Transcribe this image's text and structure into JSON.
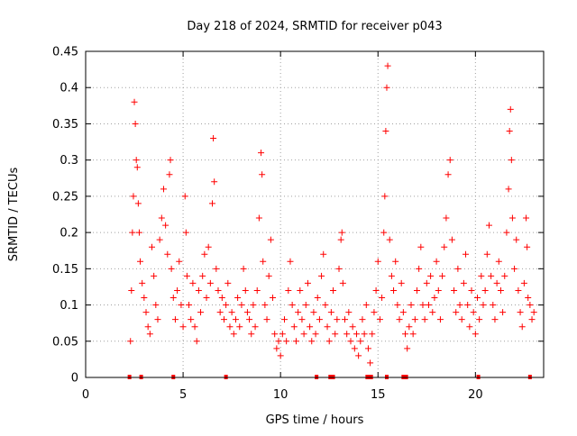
{
  "chart_data": {
    "type": "scatter",
    "title": "Day 218 of 2024, SRMTID for receiver p043",
    "xlabel": "GPS time / hours",
    "ylabel": "SRMTID / TECUs",
    "xlim": [
      0,
      23.5
    ],
    "ylim": [
      0,
      0.45
    ],
    "x_ticks": [
      0,
      5,
      10,
      15,
      20
    ],
    "y_ticks": [
      0,
      0.05,
      0.1,
      0.15,
      0.2,
      0.25,
      0.3,
      0.35,
      0.4,
      0.45
    ],
    "x_tick_labels": [
      "0",
      "5",
      "10",
      "15",
      "20"
    ],
    "y_tick_labels": [
      "0",
      "0.05",
      "0.1",
      "0.15",
      "0.2",
      "0.25",
      "0.3",
      "0.35",
      "0.4",
      "0.45"
    ],
    "grid": true,
    "marker": "+",
    "color": "#ff0000",
    "baseline_x": [
      2.25,
      2.85,
      4.5,
      7.2,
      11.85,
      12.55,
      12.7,
      14.45,
      14.55,
      14.65,
      15.45,
      16.3,
      16.45,
      20.15,
      22.8
    ],
    "series": [
      {
        "name": "SRMTID",
        "points": [
          [
            2.3,
            0.05
          ],
          [
            2.35,
            0.12
          ],
          [
            2.4,
            0.2
          ],
          [
            2.45,
            0.25
          ],
          [
            2.5,
            0.38
          ],
          [
            2.55,
            0.35
          ],
          [
            2.6,
            0.3
          ],
          [
            2.65,
            0.29
          ],
          [
            2.7,
            0.24
          ],
          [
            2.75,
            0.2
          ],
          [
            2.8,
            0.16
          ],
          [
            2.9,
            0.13
          ],
          [
            3.0,
            0.11
          ],
          [
            3.1,
            0.09
          ],
          [
            3.2,
            0.07
          ],
          [
            3.3,
            0.06
          ],
          [
            3.4,
            0.18
          ],
          [
            3.5,
            0.14
          ],
          [
            3.6,
            0.1
          ],
          [
            3.7,
            0.08
          ],
          [
            3.8,
            0.19
          ],
          [
            3.9,
            0.22
          ],
          [
            4.0,
            0.26
          ],
          [
            4.1,
            0.21
          ],
          [
            4.2,
            0.17
          ],
          [
            4.3,
            0.28
          ],
          [
            4.35,
            0.3
          ],
          [
            4.4,
            0.15
          ],
          [
            4.5,
            0.11
          ],
          [
            4.6,
            0.08
          ],
          [
            4.7,
            0.12
          ],
          [
            4.8,
            0.16
          ],
          [
            4.9,
            0.1
          ],
          [
            5.0,
            0.07
          ],
          [
            5.1,
            0.25
          ],
          [
            5.15,
            0.2
          ],
          [
            5.2,
            0.14
          ],
          [
            5.3,
            0.1
          ],
          [
            5.4,
            0.08
          ],
          [
            5.5,
            0.13
          ],
          [
            5.6,
            0.07
          ],
          [
            5.7,
            0.05
          ],
          [
            5.8,
            0.12
          ],
          [
            5.9,
            0.09
          ],
          [
            6.0,
            0.14
          ],
          [
            6.1,
            0.17
          ],
          [
            6.2,
            0.11
          ],
          [
            6.3,
            0.18
          ],
          [
            6.4,
            0.13
          ],
          [
            6.5,
            0.24
          ],
          [
            6.55,
            0.33
          ],
          [
            6.6,
            0.27
          ],
          [
            6.7,
            0.15
          ],
          [
            6.8,
            0.12
          ],
          [
            6.9,
            0.09
          ],
          [
            7.0,
            0.11
          ],
          [
            7.1,
            0.08
          ],
          [
            7.2,
            0.1
          ],
          [
            7.3,
            0.13
          ],
          [
            7.4,
            0.07
          ],
          [
            7.5,
            0.09
          ],
          [
            7.6,
            0.06
          ],
          [
            7.7,
            0.08
          ],
          [
            7.8,
            0.11
          ],
          [
            7.9,
            0.07
          ],
          [
            8.0,
            0.1
          ],
          [
            8.1,
            0.15
          ],
          [
            8.2,
            0.12
          ],
          [
            8.3,
            0.09
          ],
          [
            8.4,
            0.08
          ],
          [
            8.5,
            0.06
          ],
          [
            8.6,
            0.1
          ],
          [
            8.7,
            0.07
          ],
          [
            8.8,
            0.12
          ],
          [
            8.9,
            0.22
          ],
          [
            9.0,
            0.31
          ],
          [
            9.05,
            0.28
          ],
          [
            9.1,
            0.16
          ],
          [
            9.2,
            0.1
          ],
          [
            9.3,
            0.08
          ],
          [
            9.4,
            0.14
          ],
          [
            9.5,
            0.19
          ],
          [
            9.6,
            0.11
          ],
          [
            9.7,
            0.06
          ],
          [
            9.8,
            0.04
          ],
          [
            9.9,
            0.05
          ],
          [
            10.0,
            0.03
          ],
          [
            10.1,
            0.06
          ],
          [
            10.2,
            0.08
          ],
          [
            10.3,
            0.05
          ],
          [
            10.4,
            0.12
          ],
          [
            10.5,
            0.16
          ],
          [
            10.6,
            0.1
          ],
          [
            10.7,
            0.07
          ],
          [
            10.8,
            0.05
          ],
          [
            10.9,
            0.09
          ],
          [
            11.0,
            0.12
          ],
          [
            11.1,
            0.08
          ],
          [
            11.2,
            0.06
          ],
          [
            11.3,
            0.1
          ],
          [
            11.4,
            0.13
          ],
          [
            11.5,
            0.07
          ],
          [
            11.6,
            0.05
          ],
          [
            11.7,
            0.09
          ],
          [
            11.8,
            0.06
          ],
          [
            11.9,
            0.11
          ],
          [
            12.0,
            0.08
          ],
          [
            12.1,
            0.14
          ],
          [
            12.2,
            0.17
          ],
          [
            12.3,
            0.1
          ],
          [
            12.4,
            0.07
          ],
          [
            12.5,
            0.05
          ],
          [
            12.6,
            0.09
          ],
          [
            12.7,
            0.12
          ],
          [
            12.8,
            0.06
          ],
          [
            12.9,
            0.08
          ],
          [
            13.0,
            0.15
          ],
          [
            13.1,
            0.19
          ],
          [
            13.15,
            0.2
          ],
          [
            13.2,
            0.13
          ],
          [
            13.3,
            0.08
          ],
          [
            13.4,
            0.06
          ],
          [
            13.5,
            0.09
          ],
          [
            13.6,
            0.05
          ],
          [
            13.7,
            0.07
          ],
          [
            13.8,
            0.04
          ],
          [
            13.9,
            0.06
          ],
          [
            14.0,
            0.03
          ],
          [
            14.1,
            0.05
          ],
          [
            14.2,
            0.08
          ],
          [
            14.3,
            0.06
          ],
          [
            14.4,
            0.1
          ],
          [
            14.5,
            0.04
          ],
          [
            14.6,
            0.02
          ],
          [
            14.7,
            0.06
          ],
          [
            14.8,
            0.09
          ],
          [
            14.9,
            0.12
          ],
          [
            15.0,
            0.16
          ],
          [
            15.1,
            0.08
          ],
          [
            15.2,
            0.11
          ],
          [
            15.3,
            0.2
          ],
          [
            15.35,
            0.25
          ],
          [
            15.4,
            0.34
          ],
          [
            15.45,
            0.4
          ],
          [
            15.5,
            0.43
          ],
          [
            15.6,
            0.19
          ],
          [
            15.7,
            0.14
          ],
          [
            15.8,
            0.12
          ],
          [
            15.9,
            0.16
          ],
          [
            16.0,
            0.1
          ],
          [
            16.1,
            0.08
          ],
          [
            16.2,
            0.13
          ],
          [
            16.3,
            0.09
          ],
          [
            16.4,
            0.06
          ],
          [
            16.5,
            0.04
          ],
          [
            16.6,
            0.07
          ],
          [
            16.7,
            0.1
          ],
          [
            16.8,
            0.06
          ],
          [
            16.9,
            0.08
          ],
          [
            17.0,
            0.12
          ],
          [
            17.1,
            0.15
          ],
          [
            17.2,
            0.18
          ],
          [
            17.3,
            0.1
          ],
          [
            17.4,
            0.08
          ],
          [
            17.5,
            0.13
          ],
          [
            17.6,
            0.1
          ],
          [
            17.7,
            0.14
          ],
          [
            17.8,
            0.09
          ],
          [
            17.9,
            0.11
          ],
          [
            18.0,
            0.16
          ],
          [
            18.1,
            0.12
          ],
          [
            18.2,
            0.08
          ],
          [
            18.3,
            0.14
          ],
          [
            18.4,
            0.18
          ],
          [
            18.5,
            0.22
          ],
          [
            18.6,
            0.28
          ],
          [
            18.7,
            0.3
          ],
          [
            18.8,
            0.19
          ],
          [
            18.9,
            0.12
          ],
          [
            19.0,
            0.09
          ],
          [
            19.1,
            0.15
          ],
          [
            19.2,
            0.1
          ],
          [
            19.3,
            0.08
          ],
          [
            19.4,
            0.13
          ],
          [
            19.5,
            0.17
          ],
          [
            19.6,
            0.1
          ],
          [
            19.7,
            0.07
          ],
          [
            19.8,
            0.12
          ],
          [
            19.9,
            0.09
          ],
          [
            20.0,
            0.06
          ],
          [
            20.1,
            0.11
          ],
          [
            20.2,
            0.08
          ],
          [
            20.3,
            0.14
          ],
          [
            20.4,
            0.1
          ],
          [
            20.5,
            0.12
          ],
          [
            20.6,
            0.17
          ],
          [
            20.7,
            0.21
          ],
          [
            20.8,
            0.14
          ],
          [
            20.9,
            0.1
          ],
          [
            21.0,
            0.08
          ],
          [
            21.1,
            0.13
          ],
          [
            21.2,
            0.16
          ],
          [
            21.3,
            0.12
          ],
          [
            21.4,
            0.09
          ],
          [
            21.5,
            0.14
          ],
          [
            21.6,
            0.2
          ],
          [
            21.7,
            0.26
          ],
          [
            21.75,
            0.34
          ],
          [
            21.8,
            0.37
          ],
          [
            21.85,
            0.3
          ],
          [
            21.9,
            0.22
          ],
          [
            22.0,
            0.15
          ],
          [
            22.1,
            0.19
          ],
          [
            22.2,
            0.12
          ],
          [
            22.3,
            0.09
          ],
          [
            22.4,
            0.07
          ],
          [
            22.5,
            0.13
          ],
          [
            22.6,
            0.22
          ],
          [
            22.65,
            0.18
          ],
          [
            22.7,
            0.11
          ],
          [
            22.8,
            0.1
          ],
          [
            22.9,
            0.08
          ],
          [
            23.0,
            0.09
          ]
        ]
      }
    ]
  }
}
